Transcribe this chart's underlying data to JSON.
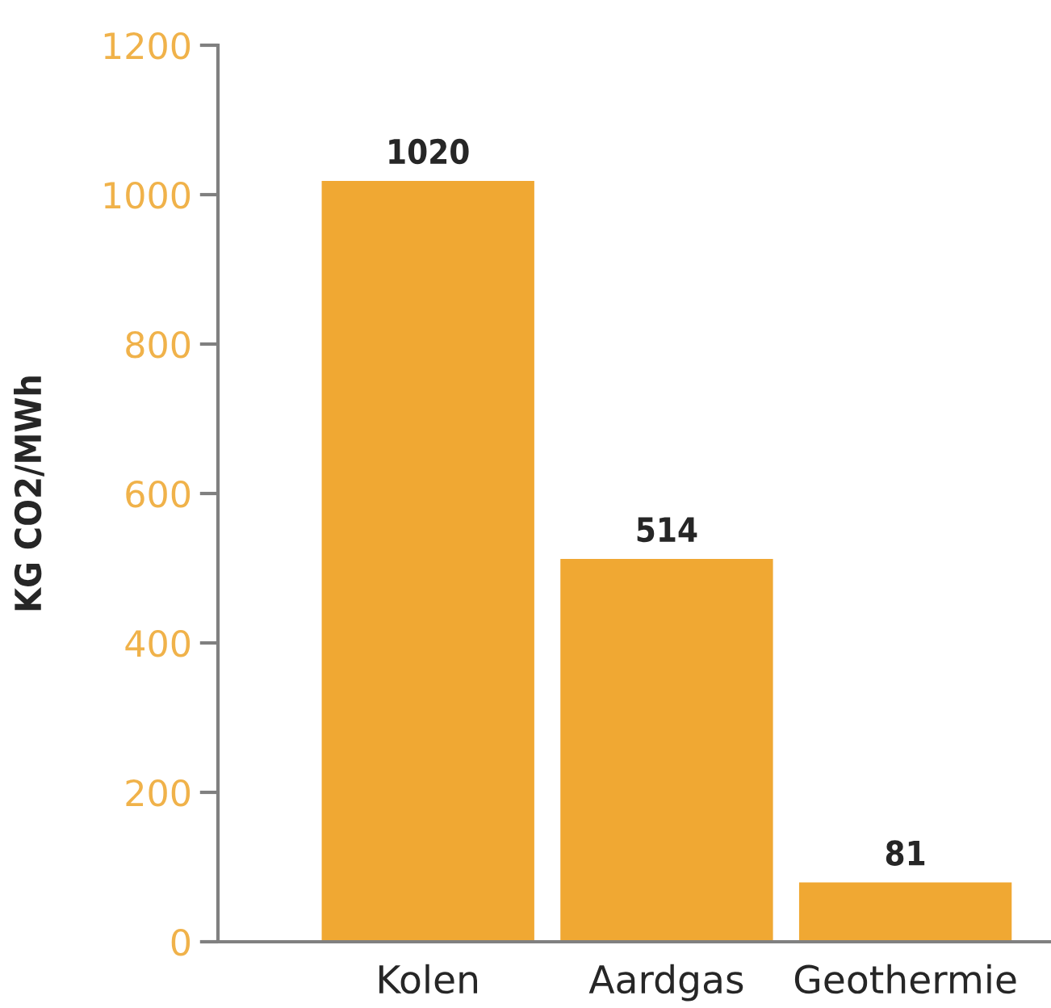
{
  "chart_data": {
    "type": "bar",
    "ylabel": "KG CO2/MWh",
    "categories": [
      "Kolen",
      "Aardgas",
      "Geothermie"
    ],
    "values": [
      1020,
      514,
      81
    ],
    "color": "#f0a833",
    "ylim": [
      0,
      1200
    ],
    "yticks": [
      0,
      200,
      400,
      600,
      800,
      1000,
      1200
    ],
    "data_labels": true,
    "grid": false,
    "legend": false
  }
}
